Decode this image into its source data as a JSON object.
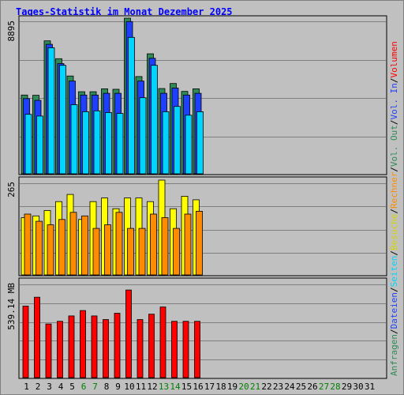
{
  "title": "Tages-Statistik im Monat Dezember 2025",
  "chart_data": [
    {
      "type": "bar",
      "name": "hits",
      "ymax_label": "8895",
      "ylim": [
        0,
        8895
      ],
      "series": [
        {
          "name": "Anfragen",
          "color": "#2e8b57",
          "values": [
            4500,
            4490,
            7600,
            6580,
            5590,
            4690,
            4690,
            4860,
            4830,
            8895,
            5560,
            6860,
            4870,
            5160,
            4710,
            4860
          ]
        },
        {
          "name": "Dateien",
          "color": "#1f3fff",
          "values": [
            4300,
            4200,
            7400,
            6300,
            5300,
            4500,
            4500,
            4600,
            4600,
            8700,
            5300,
            6600,
            4600,
            4900,
            4500,
            4600
          ]
        },
        {
          "name": "Seiten",
          "color": "#00d5ff",
          "values": [
            3400,
            3300,
            7200,
            6200,
            3950,
            3550,
            3600,
            3500,
            3450,
            7800,
            4350,
            6200,
            3550,
            3850,
            3350,
            3550
          ]
        }
      ]
    },
    {
      "type": "bar",
      "name": "visits",
      "ymax_label": "265",
      "ylim": [
        0,
        265
      ],
      "series": [
        {
          "name": "Besuche",
          "color": "#ffff00",
          "values": [
            160,
            165,
            180,
            205,
            225,
            155,
            205,
            215,
            185,
            215,
            215,
            205,
            265,
            185,
            220,
            210
          ]
        },
        {
          "name": "Rechner",
          "color": "#ff8c00",
          "values": [
            170,
            150,
            140,
            155,
            175,
            165,
            130,
            140,
            175,
            130,
            130,
            170,
            160,
            130,
            170,
            178
          ]
        }
      ]
    },
    {
      "type": "bar",
      "name": "volume",
      "ymax_label": "539.14 MB",
      "ylim": [
        0,
        539.14
      ],
      "series": [
        {
          "name": "Volumen",
          "color": "#ff0000",
          "values": [
            400,
            450,
            300,
            315,
            345,
            375,
            345,
            325,
            360,
            490,
            325,
            355,
            395,
            315,
            315,
            315
          ]
        }
      ]
    }
  ],
  "days": [
    {
      "label": "1",
      "weekend": false
    },
    {
      "label": "2",
      "weekend": false
    },
    {
      "label": "3",
      "weekend": false
    },
    {
      "label": "4",
      "weekend": false
    },
    {
      "label": "5",
      "weekend": false
    },
    {
      "label": "6",
      "weekend": true
    },
    {
      "label": "7",
      "weekend": true
    },
    {
      "label": "8",
      "weekend": false
    },
    {
      "label": "9",
      "weekend": false
    },
    {
      "label": "10",
      "weekend": false
    },
    {
      "label": "11",
      "weekend": false
    },
    {
      "label": "12",
      "weekend": false
    },
    {
      "label": "13",
      "weekend": true
    },
    {
      "label": "14",
      "weekend": true
    },
    {
      "label": "15",
      "weekend": false
    },
    {
      "label": "16",
      "weekend": false
    },
    {
      "label": "17",
      "weekend": false
    },
    {
      "label": "18",
      "weekend": false
    },
    {
      "label": "19",
      "weekend": false
    },
    {
      "label": "20",
      "weekend": true
    },
    {
      "label": "21",
      "weekend": true
    },
    {
      "label": "22",
      "weekend": false
    },
    {
      "label": "23",
      "weekend": false
    },
    {
      "label": "24",
      "weekend": false
    },
    {
      "label": "25",
      "weekend": false
    },
    {
      "label": "26",
      "weekend": false
    },
    {
      "label": "27",
      "weekend": true
    },
    {
      "label": "28",
      "weekend": true
    },
    {
      "label": "29",
      "weekend": false
    },
    {
      "label": "30",
      "weekend": false
    },
    {
      "label": "31",
      "weekend": false
    }
  ],
  "colors": {
    "weekday": "#000000",
    "weekend": "#008000",
    "grid": "#808080",
    "legend_separator": "#000000"
  },
  "legend": [
    {
      "parts": [
        {
          "text": "Anfragen",
          "color": "#2e8b57"
        },
        {
          "text": "/",
          "color": "#000000"
        },
        {
          "text": "Dateien",
          "color": "#1f3fff"
        },
        {
          "text": "/",
          "color": "#000000"
        },
        {
          "text": "Seiten",
          "color": "#00d5ff"
        },
        {
          "text": "/",
          "color": "#000000"
        },
        {
          "text": "Besuche",
          "color": "#d4d400"
        },
        {
          "text": "/",
          "color": "#000000"
        },
        {
          "text": "Rechner",
          "color": "#ff8c00"
        },
        {
          "text": "/",
          "color": "#000000"
        },
        {
          "text": "Vol. Out",
          "color": "#2e8b57"
        },
        {
          "text": "/",
          "color": "#000000"
        },
        {
          "text": "Vol. In",
          "color": "#1f3fff"
        },
        {
          "text": "/",
          "color": "#000000"
        },
        {
          "text": "Volumen",
          "color": "#ff0000"
        }
      ]
    }
  ]
}
